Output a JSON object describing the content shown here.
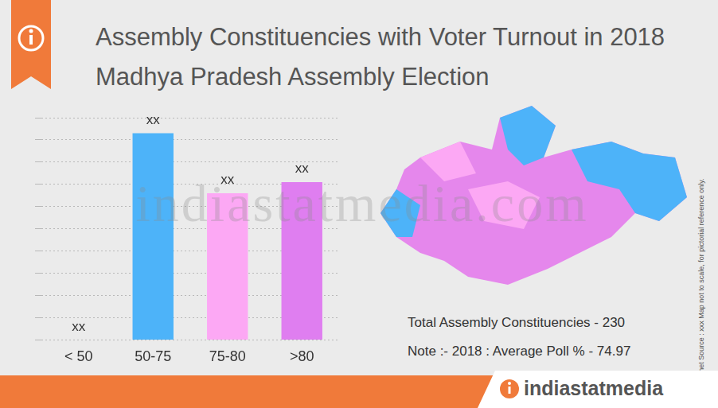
{
  "chart_data": {
    "type": "bar",
    "title": "Assembly Constituencies with Voter Turnout in 2018 Madhya Pradesh Assembly Election",
    "categories": [
      "< 50",
      "50-75",
      "75-80",
      ">80"
    ],
    "values": [
      0,
      93,
      66,
      71
    ],
    "value_labels": [
      "xx",
      "xx",
      "xx",
      "xx"
    ],
    "colors": [
      "#4db3f9",
      "#4db3f9",
      "#fca8f4",
      "#df7ef0"
    ],
    "ylim": [
      0,
      100
    ],
    "yticks": [
      0,
      10,
      20,
      30,
      40,
      50,
      60,
      70,
      80,
      90,
      100
    ],
    "grid": true,
    "data_labels": true,
    "tick_labels": "x",
    "annotations": [
      "Total Assembly Constituencies - 230",
      "Note :- 2018 : Average Poll % - 74.97"
    ],
    "side_note": "© Datanet  Source : xxx  Map not to scale, for pictorial reference only.",
    "watermark": "indiastatmedia.com",
    "brand": "indiastatmedia"
  }
}
